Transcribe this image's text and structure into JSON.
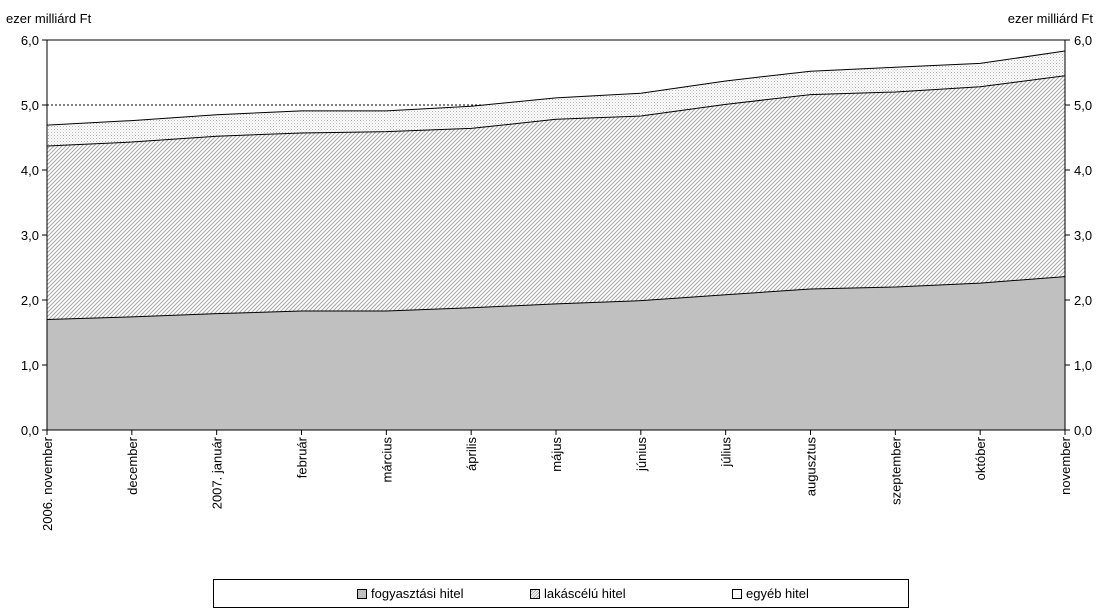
{
  "chart_data": {
    "type": "area",
    "stacked": true,
    "left_axis_label": "ezer milliárd Ft",
    "right_axis_label": "ezer milliárd Ft",
    "ylim": [
      0,
      6
    ],
    "y_ticks": [
      "0,0",
      "1,0",
      "2,0",
      "3,0",
      "4,0",
      "5,0",
      "6,0"
    ],
    "reference_line": 5.0,
    "categories": [
      "2006. november",
      "december",
      "2007. január",
      "február",
      "március",
      "április",
      "május",
      "június",
      "július",
      "augusztus",
      "szeptember",
      "október",
      "november"
    ],
    "series": [
      {
        "name": "fogyasztási hitel",
        "values": [
          1.7,
          1.74,
          1.79,
          1.83,
          1.83,
          1.88,
          1.94,
          1.99,
          2.08,
          2.17,
          2.2,
          2.26,
          2.36
        ]
      },
      {
        "name": "lakáscélú hitel",
        "values": [
          2.67,
          2.69,
          2.73,
          2.74,
          2.76,
          2.76,
          2.84,
          2.84,
          2.93,
          2.99,
          3.0,
          3.02,
          3.09
        ]
      },
      {
        "name": "egyéb hitel",
        "values": [
          0.32,
          0.33,
          0.33,
          0.34,
          0.32,
          0.34,
          0.33,
          0.35,
          0.36,
          0.36,
          0.38,
          0.36,
          0.38
        ]
      }
    ],
    "legend_position": "bottom",
    "grid": false,
    "colors": {
      "fogyasztasi": "#c0c0c0",
      "lakascelu_hatch": "#a8a8a8",
      "egyeb_dots": "#b4b4b4",
      "line": "#000000"
    }
  }
}
